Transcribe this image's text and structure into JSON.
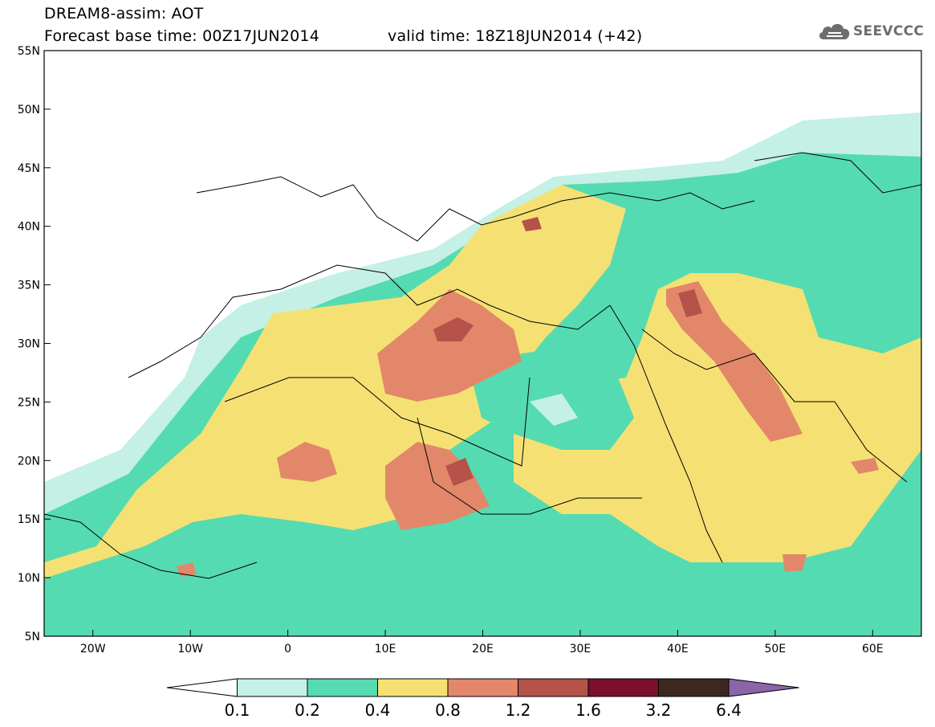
{
  "title": {
    "line1": "DREAM8-assim: AOT",
    "line2": "Forecast base time: 00Z17JUN2014",
    "line3": "valid time: 18Z18JUN2014 (+42)"
  },
  "logo": {
    "text": "SEEVCCC",
    "icon": "cloud-icon"
  },
  "map": {
    "lon_range": [
      -25,
      65
    ],
    "lat_range": [
      5,
      55
    ],
    "lat_labels": [
      "55N",
      "50N",
      "45N",
      "40N",
      "35N",
      "30N",
      "25N",
      "20N",
      "15N",
      "10N",
      "5N"
    ],
    "lon_labels": [
      "20W",
      "10W",
      "0",
      "10E",
      "20E",
      "30E",
      "40E",
      "50E",
      "60E"
    ]
  },
  "colorbar": {
    "labels": [
      "0.1",
      "0.2",
      "0.4",
      "0.8",
      "1.2",
      "1.6",
      "3.2",
      "6.4"
    ],
    "colors": [
      "#ffffff",
      "#c4f0e6",
      "#55dbb1",
      "#f5e173",
      "#e3876a",
      "#b5524a",
      "#7b0f2b",
      "#3c281e",
      "#8c64aa"
    ]
  }
}
